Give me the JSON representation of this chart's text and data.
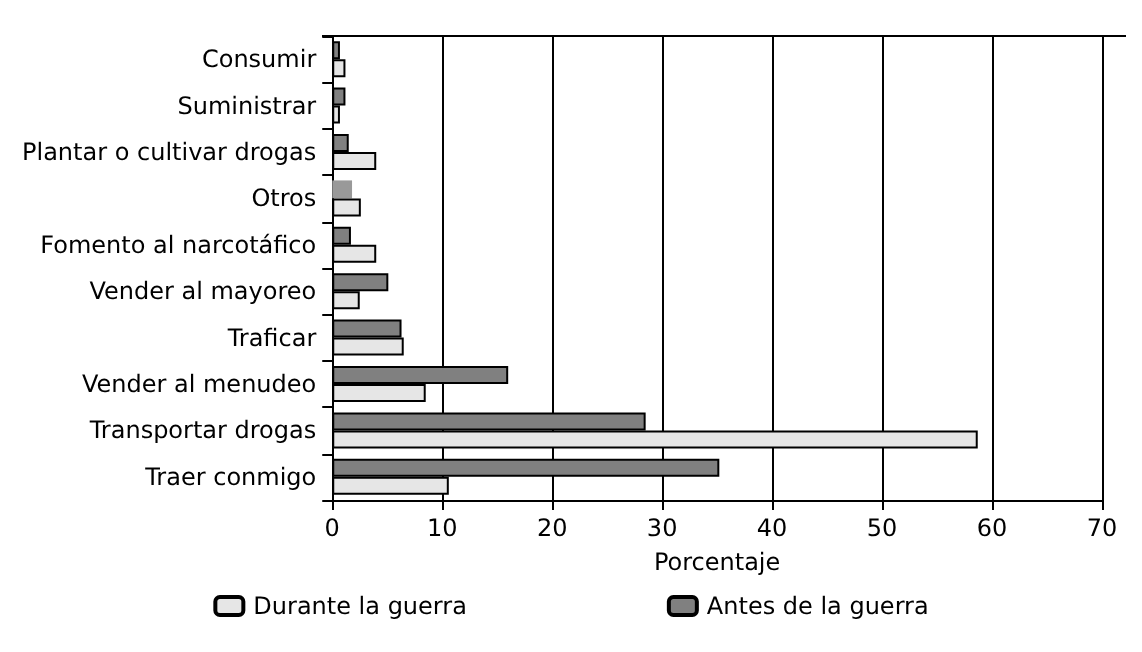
{
  "chart_data": {
    "type": "bar",
    "orientation": "horizontal",
    "xlabel": "Porcentaje",
    "categories": [
      "Consumir",
      "Suministrar",
      "Plantar o cultivar drogas",
      "Otros",
      "Fomento al narcotáfico",
      "Vender al mayoreo",
      "Traficar",
      "Vender al menudeo",
      "Transportar drogas",
      "Traer conmigo"
    ],
    "series": [
      {
        "name": "Durante la guerra",
        "color": "#e6e6e6",
        "values": [
          1.2,
          0.7,
          4,
          2.6,
          4,
          2.5,
          6.5,
          8.5,
          58.7,
          10.6
        ]
      },
      {
        "name": "Antes de la guerra",
        "color": "#808080",
        "colors": [
          "#808080",
          "#808080",
          "#808080",
          "#999999",
          "#808080",
          "#808080",
          "#808080",
          "#808080",
          "#808080",
          "#808080"
        ],
        "values": [
          0.7,
          1.2,
          1.5,
          1.8,
          1.7,
          5.1,
          6.3,
          16,
          28.5,
          35.2
        ]
      }
    ],
    "xlim": [
      0,
      70
    ],
    "xticks": [
      0,
      10,
      20,
      30,
      40,
      50,
      60,
      70
    ],
    "grid": "x",
    "legend": "bottom"
  }
}
